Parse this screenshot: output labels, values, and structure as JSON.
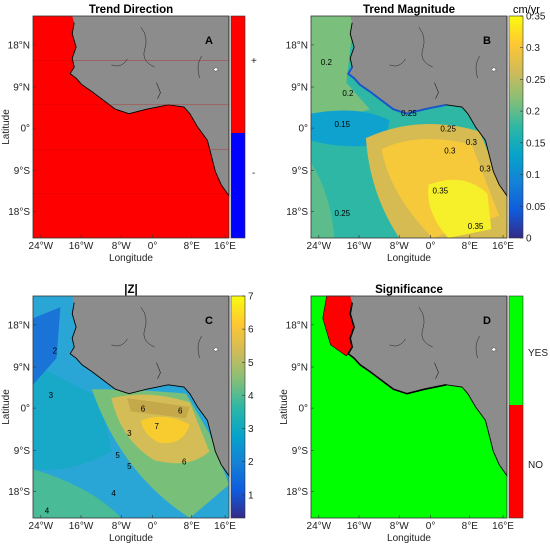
{
  "colors": {
    "land": "#8c8c8c",
    "red": "#ff0000",
    "blue": "#0000ff",
    "green": "#00ff00",
    "coast": "#000000"
  },
  "chart_data": [
    {
      "id": "A",
      "type": "heatmap",
      "title": "Trend Direction",
      "panel_label": "A",
      "xlabel": "Longitude",
      "ylabel": "Latitude",
      "xticks": [
        "24°W",
        "16°W",
        "8°W",
        "0°",
        "8°E",
        "16°E"
      ],
      "yticks": [
        "18°N",
        "9°N",
        "0°",
        "9°S",
        "18°S"
      ],
      "xlim": [
        -26,
        16
      ],
      "ylim": [
        -23,
        24
      ],
      "colorbar": {
        "type": "categorical",
        "categories": [
          "-",
          "+"
        ],
        "colors": [
          "#0000ff",
          "#ff0000"
        ]
      },
      "dominant_value": "+"
    },
    {
      "id": "B",
      "type": "heatmap",
      "title": "Trend Magnitude",
      "panel_label": "B",
      "xlabel": "Longitude",
      "ylabel": "",
      "xticks": [
        "24°W",
        "16°W",
        "8°W",
        "0°",
        "8°E",
        "16°E"
      ],
      "yticks": [
        "18°N",
        "9°N",
        "0°",
        "9°S",
        "18°S"
      ],
      "colorbar": {
        "unit": "cm/yr",
        "range": [
          0,
          0.35
        ],
        "ticks": [
          "0",
          "0.05",
          "0.1",
          "0.15",
          "0.2",
          "0.25",
          "0.3",
          "0.35"
        ]
      },
      "contour_labels": [
        "0.2",
        "0.15",
        "0.2",
        "0.25",
        "0.25",
        "0.3",
        "0.3",
        "0.35",
        "0.35",
        "0.25",
        "0.3"
      ]
    },
    {
      "id": "C",
      "type": "heatmap",
      "title": "|Z|",
      "panel_label": "C",
      "xlabel": "Longitude",
      "ylabel": "Latitude",
      "xticks": [
        "24°W",
        "16°W",
        "8°W",
        "0°",
        "8°E",
        "16°E"
      ],
      "yticks": [
        "18°N",
        "9°N",
        "0°",
        "9°S",
        "18°S"
      ],
      "colorbar": {
        "range": [
          0.3,
          7
        ],
        "ticks": [
          "1",
          "2",
          "3",
          "4",
          "5",
          "6",
          "7"
        ]
      },
      "contour_labels": [
        "2",
        "3",
        "3",
        "4",
        "5",
        "6",
        "7",
        "6",
        "5",
        "6",
        "4"
      ]
    },
    {
      "id": "D",
      "type": "heatmap",
      "title": "Significance",
      "panel_label": "D",
      "xlabel": "Longitude",
      "ylabel": "Latitude",
      "xticks": [
        "24°W",
        "16°W",
        "8°W",
        "0°",
        "8°E",
        "16°E"
      ],
      "yticks": [
        "18°N",
        "9°N",
        "0°",
        "9°S",
        "18°S"
      ],
      "colorbar": {
        "type": "categorical",
        "categories": [
          "NO",
          "YES"
        ],
        "colors": [
          "#ff0000",
          "#00ff00"
        ]
      },
      "dominant_value": "YES"
    }
  ]
}
